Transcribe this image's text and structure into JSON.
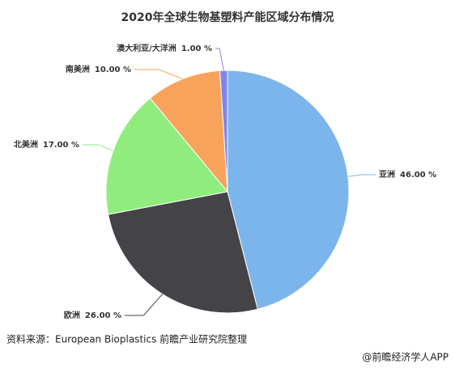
{
  "chart_data": {
    "type": "pie",
    "title": "2020年全球生物基塑料产能区域分布情况",
    "categories": [
      "亚洲",
      "欧洲",
      "北美洲",
      "南美洲",
      "澳大利亚/大洋洲"
    ],
    "values": [
      46,
      26,
      17,
      10,
      1
    ],
    "value_labels": [
      "46.00 %",
      "26.00 %",
      "17.00 %",
      "10.00 %",
      "1.00 %"
    ],
    "colors": [
      "#7cb5ec",
      "#434348",
      "#90ed7d",
      "#f7a35c",
      "#8085e9"
    ]
  },
  "footer": {
    "source": "资料来源：European Bioplastics 前瞻产业研究院整理",
    "watermark": "@前瞻经济学人APP"
  }
}
